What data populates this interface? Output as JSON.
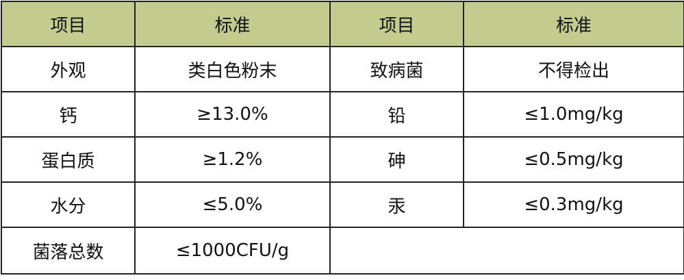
{
  "header": [
    "项目",
    "标准",
    "项目",
    "标准"
  ],
  "rows": [
    [
      "外观",
      "类白色粉末",
      "致病菌",
      "不得检出"
    ],
    [
      "钙",
      "≥13.0%",
      "铅",
      "≤1.0mg/kg"
    ],
    [
      "蛋白质",
      "≥1.2%",
      "砷",
      "≤0.5mg/kg"
    ],
    [
      "水分",
      "≤5.0%",
      "汞",
      "≤0.3mg/kg"
    ],
    [
      "菌落总数",
      "≤1000CFU/g"
    ]
  ],
  "colors": {
    "header_bg": "#c3cb8f",
    "border": "#222222"
  }
}
